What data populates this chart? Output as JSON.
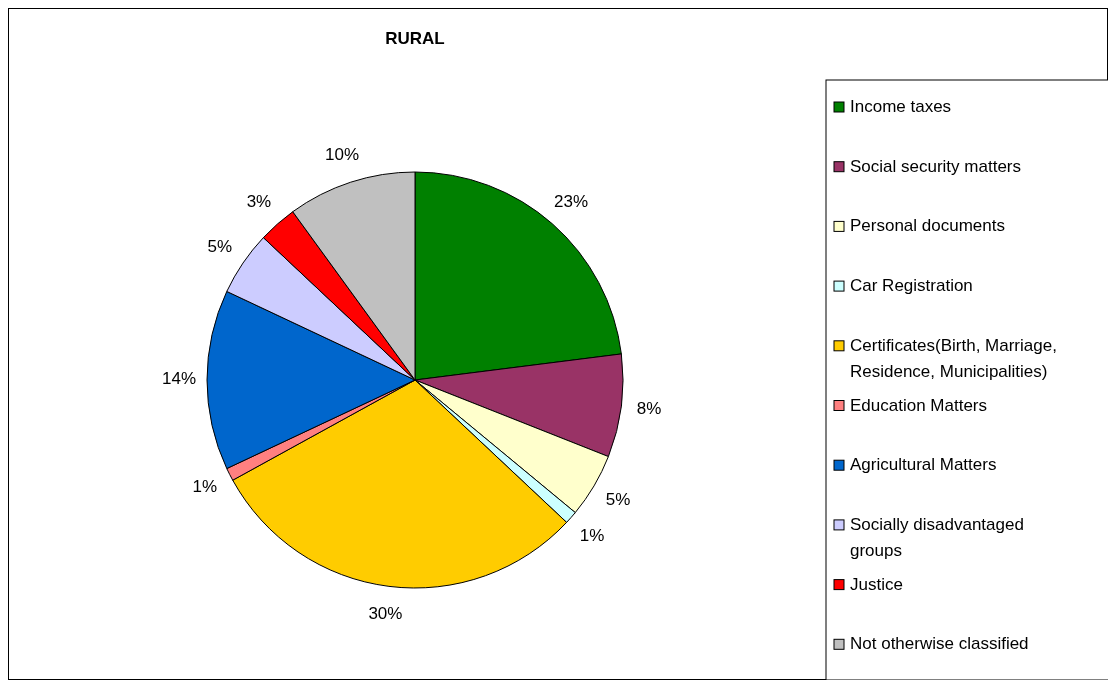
{
  "chart_data": {
    "type": "pie",
    "title": "RURAL",
    "categories": [
      "Income taxes",
      "Social security matters",
      "Personal documents",
      "Car Registration",
      "Certificates(Birth, Marriage, Residence, Municipalities)",
      "Education Matters",
      "Agricultural Matters",
      "Socially disadvantaged groups",
      "Justice",
      "Not otherwise classified"
    ],
    "values": [
      23,
      8,
      5,
      1,
      30,
      1,
      14,
      5,
      3,
      10
    ],
    "colors": [
      "#008000",
      "#993366",
      "#ffffcc",
      "#ccffff",
      "#ffcc00",
      "#ff8080",
      "#0066cc",
      "#ccccff",
      "#ff0000",
      "#c0c0c0"
    ],
    "value_labels": [
      "23%",
      "8%",
      "5%",
      "1%",
      "30%",
      "1%",
      "14%",
      "5%",
      "3%",
      "10%"
    ],
    "legend": "right"
  }
}
